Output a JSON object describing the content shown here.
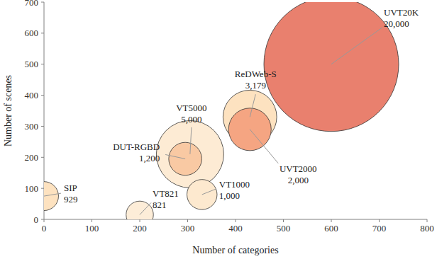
{
  "chart_data": {
    "type": "bubble",
    "x_label": "Number of categories",
    "y_label": "Number of scenes",
    "xlim": [
      0,
      800
    ],
    "xticks": [
      0,
      100,
      200,
      300,
      400,
      500,
      600,
      700,
      800
    ],
    "ylim": [
      0,
      700
    ],
    "yticks": [
      0,
      100,
      200,
      300,
      400,
      500,
      600,
      700
    ],
    "grid": false,
    "data_labels": true,
    "series": [
      {
        "labels": [
          "UVT20K",
          "VT5000",
          "ReDWeb-S",
          "UVT2000",
          "DUT-RGBD",
          "VT1000",
          "SIP",
          "VT821"
        ],
        "x": [
          600,
          305,
          430,
          430,
          295,
          330,
          0,
          200
        ],
        "values": [
          500,
          210,
          330,
          290,
          195,
          80,
          75,
          15
        ],
        "sizes": [
          20000,
          5000,
          3179,
          2000,
          1200,
          1000,
          929,
          821
        ],
        "size_labels": [
          "20,000",
          "5,000",
          "3,179",
          "2,000",
          "1,200",
          "1,000",
          "929",
          "821"
        ],
        "colors": [
          "#e9806e",
          "#fdebd4",
          "#fde2c0",
          "#f5a582",
          "#f9c9a3",
          "#fde9cf",
          "#fde2c0",
          "#fdedd8"
        ]
      }
    ]
  }
}
